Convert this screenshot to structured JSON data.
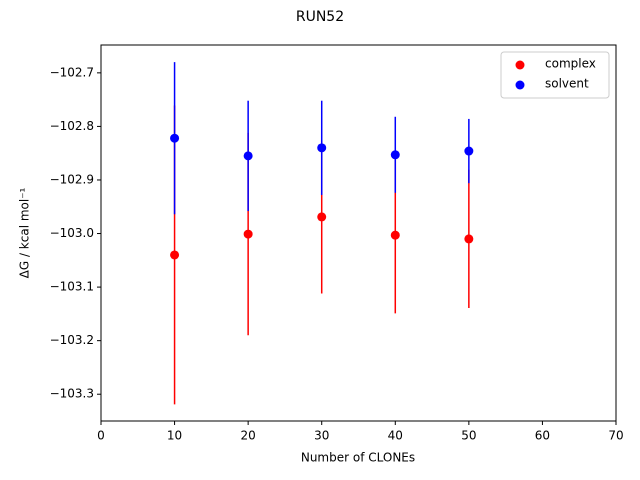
{
  "chart_data": {
    "type": "scatter",
    "title": "RUN52",
    "x_label": "Number of CLONEs",
    "y_label": "ΔG / kcal mol⁻¹",
    "series": [
      {
        "name": "complex",
        "color": "#ff0000",
        "x": [
          10,
          20,
          30,
          40,
          50
        ],
        "values": [
          -103.04,
          -103.001,
          -102.969,
          -103.003,
          -103.01
        ],
        "errors": [
          0.279,
          0.189,
          0.143,
          0.146,
          0.129
        ]
      },
      {
        "name": "solvent",
        "color": "#0000ff",
        "x": [
          10,
          20,
          30,
          40,
          50
        ],
        "values": [
          -102.822,
          -102.855,
          -102.84,
          -102.853,
          -102.846
        ],
        "errors": [
          0.142,
          0.103,
          0.088,
          0.071,
          0.06
        ]
      }
    ],
    "xlim": [
      0,
      70
    ],
    "xticks": [
      0,
      10,
      20,
      30,
      40,
      50,
      60,
      70
    ],
    "ylim": [
      -103.35,
      -102.648
    ],
    "yticks": [
      {
        "value": -103.3,
        "label": "−103.3"
      },
      {
        "value": -103.2,
        "label": "−103.2"
      },
      {
        "value": -103.1,
        "label": "−103.1"
      },
      {
        "value": -103.0,
        "label": "−103.0"
      },
      {
        "value": -102.9,
        "label": "−102.9"
      },
      {
        "value": -102.8,
        "label": "−102.8"
      },
      {
        "value": -102.7,
        "label": "−102.7"
      }
    ],
    "legend": "upper right"
  }
}
